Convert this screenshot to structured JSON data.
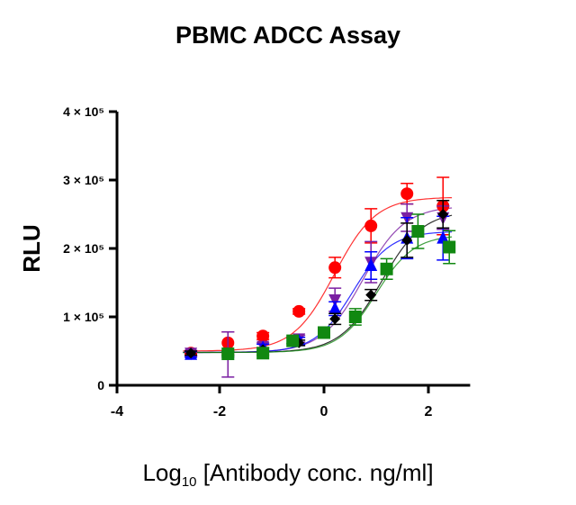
{
  "chart_data": {
    "type": "scatter",
    "title": "PBMC ADCC Assay",
    "xlabel_main": "Log",
    "xlabel_sub": "10",
    "xlabel_rest": " [Antibody conc. ng/ml]",
    "ylabel": "RLU",
    "xlim": [
      -4,
      2.8
    ],
    "ylim": [
      0,
      400000
    ],
    "xticks": [
      {
        "v": -4,
        "label": "-4"
      },
      {
        "v": -2,
        "label": "-2"
      },
      {
        "v": 0,
        "label": "0"
      },
      {
        "v": 2,
        "label": "2"
      }
    ],
    "yticks": [
      {
        "v": 0,
        "label": "0"
      },
      {
        "v": 100000,
        "label": "1 × 10⁵"
      },
      {
        "v": 200000,
        "label": "2 × 10⁵"
      },
      {
        "v": 300000,
        "label": "3 × 10⁵"
      },
      {
        "v": 400000,
        "label": "4 × 10⁵"
      }
    ],
    "grid": false,
    "series": [
      {
        "color": "#ff0000",
        "marker": "circle",
        "x": [
          -2.55,
          -1.84,
          -1.17,
          -0.48,
          0.21,
          0.9,
          1.59,
          2.28
        ],
        "y": [
          47000,
          62000,
          72000,
          108000,
          172000,
          233000,
          280000,
          262000
        ],
        "err": [
          4000,
          16000,
          5000,
          4000,
          15000,
          25000,
          15000,
          42000
        ],
        "fit": {
          "bottom": 50000,
          "top": 275000,
          "logec50": 0.2,
          "hill": 1.1
        }
      },
      {
        "color": "#7a1fa2",
        "marker": "triangle-down",
        "x": [
          -2.55,
          -1.84,
          -1.17,
          -0.48,
          0.21,
          0.9,
          1.59,
          2.28
        ],
        "y": [
          47000,
          45000,
          57000,
          68000,
          125000,
          180000,
          245000,
          245000
        ],
        "err": [
          4000,
          33000,
          5000,
          5000,
          17000,
          30000,
          20000,
          17000
        ],
        "fit": {
          "bottom": 48000,
          "top": 262000,
          "logec50": 0.75,
          "hill": 1.1
        }
      },
      {
        "color": "#0000ff",
        "marker": "triangle-up",
        "x": [
          -2.55,
          -1.84,
          -1.17,
          -0.48,
          0.21,
          0.9,
          1.59,
          2.28
        ],
        "y": [
          45000,
          45000,
          55000,
          65000,
          112000,
          175000,
          215000,
          215000
        ],
        "err": [
          4000,
          4000,
          5000,
          5000,
          10000,
          20000,
          30000,
          32000
        ],
        "fit": {
          "bottom": 48000,
          "top": 225000,
          "logec50": 0.55,
          "hill": 1.2
        }
      },
      {
        "color": "#000000",
        "marker": "diamond",
        "x": [
          -2.55,
          -1.84,
          -1.17,
          -0.48,
          0.21,
          0.9,
          1.59,
          2.28
        ],
        "y": [
          47000,
          47000,
          52000,
          62000,
          97000,
          132000,
          212000,
          250000
        ],
        "err": [
          3000,
          3000,
          3000,
          4000,
          8000,
          8000,
          25000,
          20000
        ],
        "fit": {
          "bottom": 48000,
          "top": 255000,
          "logec50": 1.1,
          "hill": 1.1
        }
      },
      {
        "color": "#118811",
        "marker": "square",
        "x": [
          -1.84,
          -1.17,
          -0.6,
          0.0,
          0.6,
          1.2,
          1.8,
          2.4
        ],
        "y": [
          46000,
          47000,
          65000,
          77000,
          100000,
          170000,
          225000,
          202000
        ],
        "err": [
          3000,
          3000,
          4000,
          5000,
          12000,
          15000,
          25000,
          24000
        ],
        "fit": {
          "bottom": 48000,
          "top": 220000,
          "logec50": 1.0,
          "hill": 1.2
        }
      }
    ]
  }
}
